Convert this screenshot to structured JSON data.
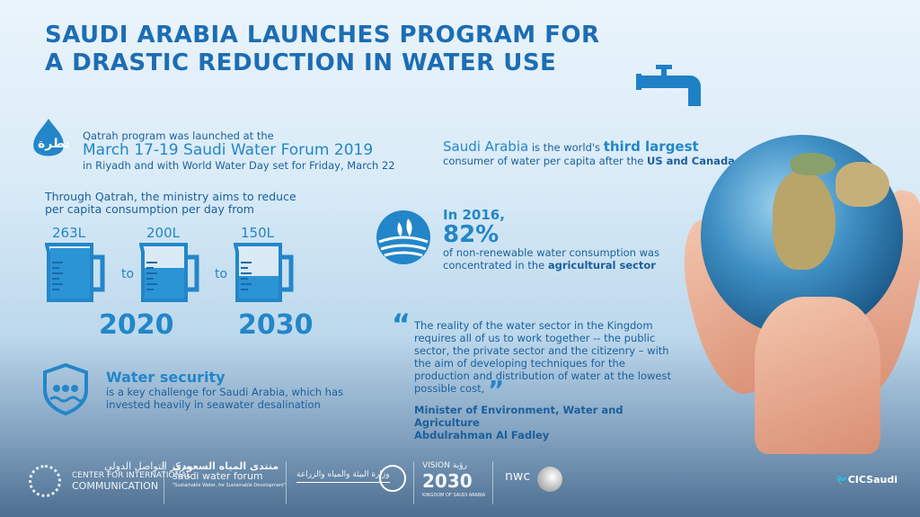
{
  "title": {
    "line1": "SAUDI ARABIA LAUNCHES PROGRAM FOR",
    "line2": "A DRASTIC REDUCTION IN WATER USE"
  },
  "launch": {
    "logo_text": "قطرة",
    "line1": "Qatrah program was launched at the",
    "line2": "March 17-19 Saudi Water Forum 2019",
    "line3": "in Riyadh and with World Water Day set for Friday, March 22"
  },
  "reduction": {
    "intro_line1": "Through Qatrah, the ministry aims to reduce",
    "intro_line2": "per capita consumption per day from",
    "jugs": [
      {
        "label": "263L",
        "fill": 1.0
      },
      {
        "label": "200L",
        "fill": 0.6
      },
      {
        "label": "150L",
        "fill": 0.45
      }
    ],
    "connector": "to",
    "year_start": "2020",
    "year_end": "2030"
  },
  "security": {
    "heading": "Water security",
    "line1": "is a key challenge for Saudi Arabia, which has",
    "line2": "invested heavily in seawater desalination"
  },
  "consumer": {
    "pre": "Saudi Arabia",
    "mid": " is the world's ",
    "bold": "third largest",
    "line2_pre": "consumer of water per capita after the ",
    "line2_bold": "US and Canada"
  },
  "agri": {
    "year": "In 2016,",
    "percent": "82%",
    "line1": "of non-renewable water consumption was",
    "line2_pre": "concentrated in the ",
    "line2_bold": "agricultural sector"
  },
  "quote": {
    "mark_open": "“",
    "lines": [
      "The reality of the water sector in the Kingdom",
      "requires all of us to work together -- the public",
      "sector, the private sector and the citizenry –  with",
      "the aim of developing techniques for the",
      "production and distribution of water at the lowest",
      "possible cost,"
    ],
    "mark_close": "”",
    "author_title": "Minister of Environment, Water and Agriculture",
    "author_name": "Abdulrahman Al Fadley"
  },
  "footer": {
    "cic": {
      "arabic": "مركز التواصل الدولي",
      "line1": "CENTER FOR INTERNATIONAL",
      "line2": "COMMUNICATION"
    },
    "swf": {
      "arabic": "منتدى المياه السعودي",
      "english": "saudi water forum",
      "tagline": "\"Sustainable Water, for Sustainable Development\""
    },
    "mewa": {
      "arabic": "وزارة البيئة والمياه والزراعة"
    },
    "vision": {
      "top": "VISION رؤية",
      "year": "2030",
      "sub": "KINGDOM OF SAUDI ARABIA"
    },
    "nwc": {
      "text": "nwc"
    },
    "twitter": {
      "handle": "CICSaudi"
    }
  },
  "colors": {
    "primary": "#1d6db3",
    "accent": "#2386c9"
  }
}
